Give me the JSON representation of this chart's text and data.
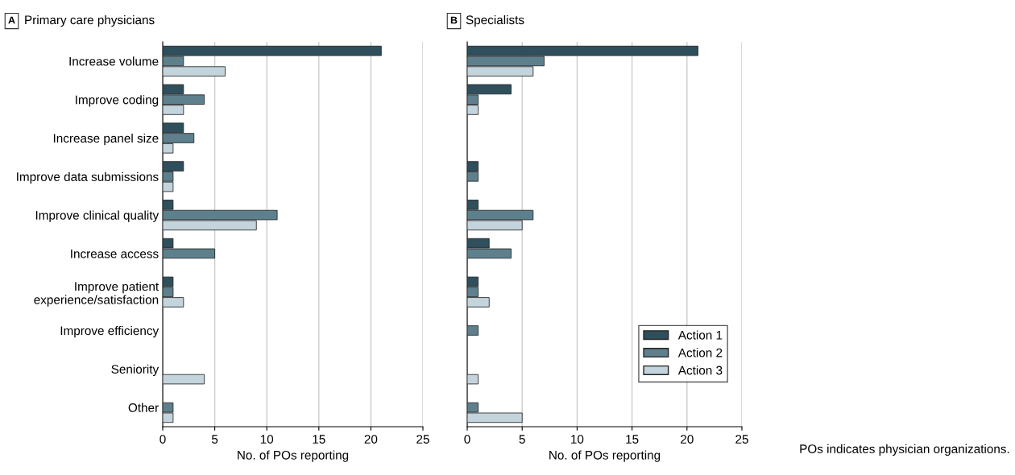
{
  "chart_data": [
    {
      "type": "bar",
      "orientation": "horizontal",
      "title": "Primary care physicians",
      "annotations": [
        "A"
      ],
      "xlabel": "No. of POs reporting",
      "categories": [
        "Increase volume",
        "Improve coding",
        "Increase panel size",
        "Improve data submissions",
        "Improve clinical quality",
        "Increase access",
        "Improve patient\nexperience/satisfaction",
        "Improve efficiency",
        "Seniority",
        "Other"
      ],
      "series": [
        {
          "color": "#2f4f5d",
          "values": [
            21,
            2,
            2,
            2,
            1,
            1,
            1,
            null,
            null,
            null
          ]
        },
        {
          "color": "#5e808d",
          "values": [
            2,
            4,
            3,
            1,
            11,
            5,
            1,
            null,
            null,
            1
          ]
        },
        {
          "color": "#c4d4dc",
          "values": [
            6,
            2,
            1,
            1,
            9,
            null,
            2,
            null,
            4,
            1
          ]
        }
      ],
      "xlim": [
        0,
        25
      ],
      "xticks": [
        0,
        5,
        10,
        15,
        20,
        25
      ],
      "grid": "x"
    },
    {
      "type": "bar",
      "orientation": "horizontal",
      "title": "Specialists",
      "annotations": [
        "B",
        "POs indicates physician organizations."
      ],
      "xlabel": "No. of POs reporting",
      "categories": [
        null,
        null,
        null,
        null,
        null,
        null,
        null,
        null,
        null,
        null
      ],
      "series": [
        {
          "name": "Action 1",
          "color": "#2f4f5d",
          "values": [
            21,
            4,
            null,
            1,
            1,
            2,
            1,
            null,
            null,
            null
          ]
        },
        {
          "name": "Action 2",
          "color": "#5e808d",
          "values": [
            7,
            1,
            null,
            1,
            6,
            4,
            1,
            1,
            null,
            1
          ]
        },
        {
          "name": "Action 3",
          "color": "#c4d4dc",
          "values": [
            6,
            1,
            null,
            null,
            5,
            null,
            2,
            null,
            1,
            5
          ]
        }
      ],
      "xlim": [
        0,
        25
      ],
      "xticks": [
        0,
        5,
        10,
        15,
        20,
        25
      ],
      "grid": "x",
      "legend": "bottom right",
      "tick_labels": "x"
    }
  ]
}
